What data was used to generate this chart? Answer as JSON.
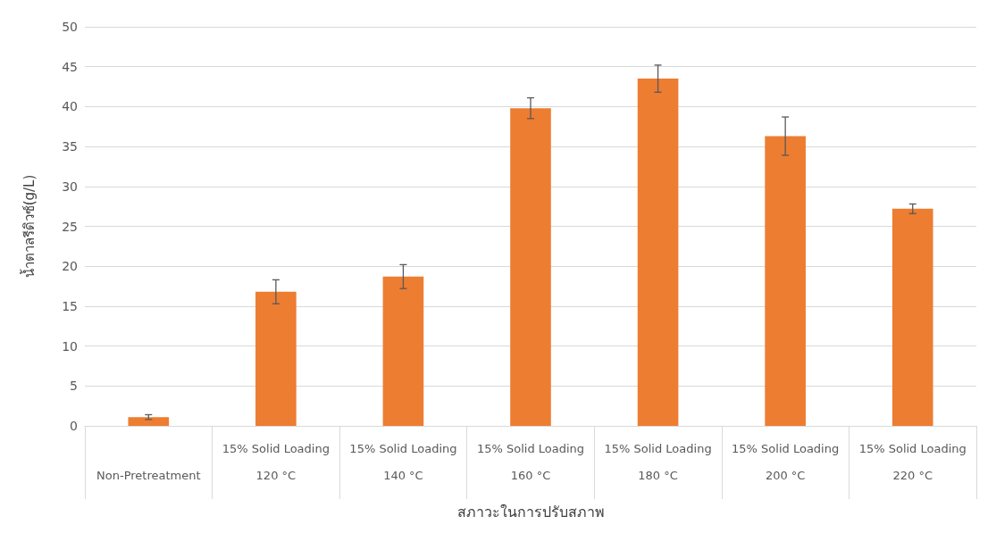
{
  "chart_data": {
    "type": "bar",
    "xlabel": "สภาวะในการปรับสภาพ",
    "ylabel": "น้ำตาลรีดิวซ์(g/L)",
    "categories": [
      "Non-Pretreatment",
      "15% Solid Loading\n120 °C",
      "15% Solid Loading\n140 °C",
      "15% Solid Loading\n160 °C",
      "15% Solid Loading\n180 °C",
      "15% Solid Loading\n200 °C",
      "15% Solid Loading\n220 °C"
    ],
    "values": [
      1.1,
      16.8,
      18.7,
      39.8,
      43.5,
      36.3,
      27.2
    ],
    "errors": [
      0.3,
      1.5,
      1.5,
      1.3,
      1.7,
      2.4,
      0.6
    ],
    "color": "#ed7d31",
    "ylim": [
      0,
      50
    ],
    "yticks": [
      0,
      5,
      10,
      15,
      20,
      25,
      30,
      35,
      40,
      45,
      50
    ],
    "grid": "y"
  }
}
